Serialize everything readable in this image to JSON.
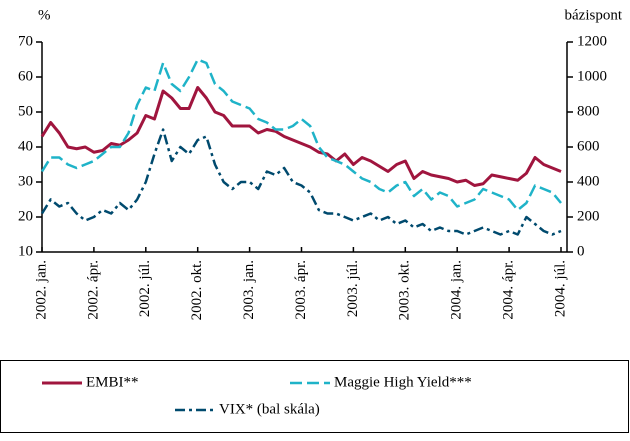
{
  "chart_data": {
    "type": "line",
    "ylabel": "%",
    "y2label": "bázispont",
    "categories": [
      "2002. jan.",
      null,
      null,
      null,
      null,
      null,
      "2002. ápr.",
      null,
      null,
      null,
      null,
      null,
      "2002. júl.",
      null,
      null,
      null,
      null,
      null,
      "2002. okt.",
      null,
      null,
      null,
      null,
      null,
      "2003. jan.",
      null,
      null,
      null,
      null,
      null,
      "2003. ápr.",
      null,
      null,
      null,
      null,
      null,
      "2003. júl.",
      null,
      null,
      null,
      null,
      null,
      "2003. okt.",
      null,
      null,
      null,
      null,
      null,
      "2004. jan.",
      null,
      null,
      null,
      null,
      null,
      "2004. ápr.",
      null,
      null,
      null,
      null,
      null,
      "2004. júl."
    ],
    "ylim": [
      10,
      70
    ],
    "yticks": [
      10,
      20,
      30,
      40,
      50,
      60,
      70
    ],
    "y2lim": [
      0,
      1200
    ],
    "y2ticks": [
      0,
      200,
      400,
      600,
      800,
      1000,
      1200
    ],
    "legend": "bottom",
    "series": [
      {
        "name": "EMBI**",
        "color": "#a0153e",
        "dash": "solid",
        "axis": "y2",
        "values": [
          660,
          740,
          680,
          600,
          590,
          600,
          570,
          580,
          620,
          610,
          640,
          680,
          780,
          760,
          920,
          880,
          820,
          820,
          940,
          880,
          800,
          780,
          720,
          720,
          720,
          680,
          700,
          690,
          660,
          640,
          620,
          600,
          570,
          560,
          520,
          560,
          500,
          540,
          520,
          490,
          460,
          500,
          520,
          420,
          460,
          440,
          430,
          420,
          400,
          410,
          380,
          390,
          440,
          430,
          420,
          410,
          450,
          540,
          500,
          480,
          460
        ]
      },
      {
        "name": "Maggie High Yield***",
        "color": "#1fb3c8",
        "dash": "dashed",
        "axis": "y2",
        "values": [
          460,
          540,
          540,
          500,
          480,
          500,
          520,
          560,
          600,
          600,
          680,
          840,
          940,
          920,
          1080,
          960,
          920,
          1000,
          1100,
          1080,
          960,
          920,
          860,
          840,
          820,
          760,
          740,
          700,
          700,
          720,
          760,
          720,
          600,
          540,
          520,
          500,
          460,
          420,
          400,
          360,
          340,
          380,
          400,
          320,
          360,
          300,
          340,
          320,
          260,
          280,
          300,
          360,
          340,
          320,
          300,
          240,
          280,
          380,
          360,
          340,
          280
        ]
      },
      {
        "name": "VIX* (bal skála)",
        "color": "#004a6e",
        "dash": "dashdot",
        "axis": "y",
        "values": [
          21,
          25,
          23,
          24,
          21,
          19,
          20,
          22,
          21,
          24,
          22,
          25,
          30,
          38,
          45,
          36,
          40,
          38,
          42,
          43,
          35,
          30,
          28,
          30,
          30,
          28,
          33,
          32,
          34,
          30,
          29,
          27,
          22,
          21,
          21,
          20,
          19,
          20,
          21,
          19,
          20,
          18,
          19,
          17,
          18,
          16,
          17,
          16,
          16,
          15,
          16,
          17,
          16,
          15,
          16,
          15,
          20,
          18,
          16,
          15,
          16
        ]
      }
    ]
  }
}
